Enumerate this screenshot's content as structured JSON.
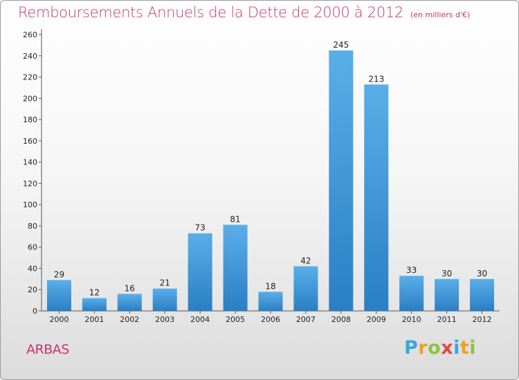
{
  "header": {
    "title": "Remboursements Annuels de la Dette de 2000 à 2012",
    "unit": "(en milliers d'€)"
  },
  "footer": {
    "commune": "ARBAS",
    "logo_text": "Proxiti"
  },
  "colors": {
    "title": "#c8336f",
    "bar_light": "#5aaee8",
    "bar_dark": "#2a7fc4"
  },
  "chart_data": {
    "type": "bar",
    "title": "Remboursements Annuels de la Dette de 2000 à 2012",
    "subtitle": "(en milliers d'€)",
    "xlabel": "",
    "ylabel": "",
    "categories": [
      "2000",
      "2001",
      "2002",
      "2003",
      "2004",
      "2005",
      "2006",
      "2007",
      "2008",
      "2009",
      "2010",
      "2011",
      "2012"
    ],
    "values": [
      29,
      12,
      16,
      21,
      73,
      81,
      18,
      42,
      245,
      213,
      33,
      30,
      30
    ],
    "ylim": [
      0,
      260
    ],
    "yticks": [
      0,
      20,
      40,
      60,
      80,
      100,
      120,
      140,
      160,
      180,
      200,
      220,
      240,
      260
    ],
    "grid": false,
    "legend": "none"
  }
}
